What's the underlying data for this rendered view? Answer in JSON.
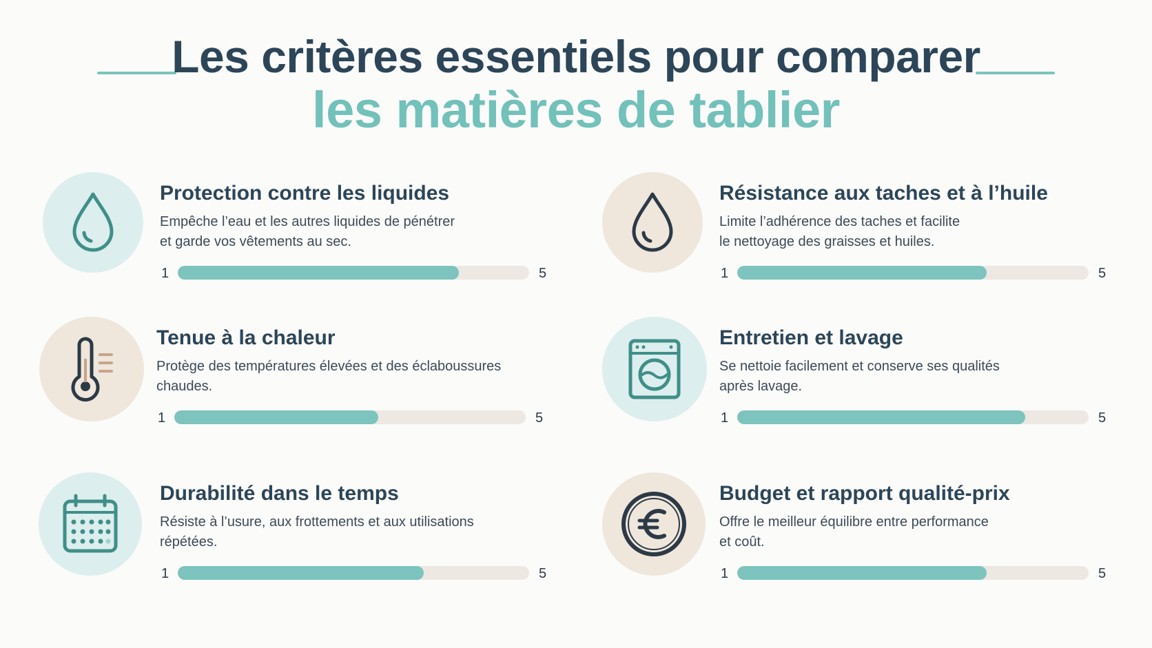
{
  "header": {
    "line1": "Les critères essentiels pour comparer",
    "line2": "les matières de tablier"
  },
  "colors": {
    "dark": "#2c4558",
    "teal": "#72c1ba",
    "beige": "#efe6dc",
    "mint": "#dceeed",
    "track": "#ede8e2"
  },
  "scale": {
    "min": "1",
    "max": "5"
  },
  "criteria": [
    {
      "icon": "droplet-icon",
      "title": "Protection contre les liquides",
      "desc_line1": "Empêche l’eau et les autres liquides de pénétrer",
      "desc_line2": "et garde vos vêtements au sec.",
      "fraction": 0.8
    },
    {
      "icon": "droplet-icon",
      "title": "Résistance aux taches et à l’huile",
      "desc_line1": "Limite l’adhérence des taches et facilite",
      "desc_line2": "le nettoyage des graisses et huiles.",
      "fraction": 0.71
    },
    {
      "icon": "thermometer-icon",
      "title": "Tenue à la chaleur",
      "desc_line1": "Protège des températures élevées et des éclaboussures",
      "desc_line2": "chaudes.",
      "fraction": 0.58
    },
    {
      "icon": "washing-machine-icon",
      "title": "Entretien et lavage",
      "desc_line1": "Se nettoie facilement et conserve ses qualités",
      "desc_line2": "après lavage.",
      "fraction": 0.82
    },
    {
      "icon": "calendar-icon",
      "title": "Durabilité dans le temps",
      "desc_line1": "Résiste à l’usure, aux frottements et aux utilisations",
      "desc_line2": "répétées.",
      "fraction": 0.7
    },
    {
      "icon": "euro-icon",
      "title": "Budget et rapport qualité-prix",
      "desc_line1": "Offre le meilleur équilibre entre performance",
      "desc_line2": "et coût.",
      "fraction": 0.71
    }
  ]
}
